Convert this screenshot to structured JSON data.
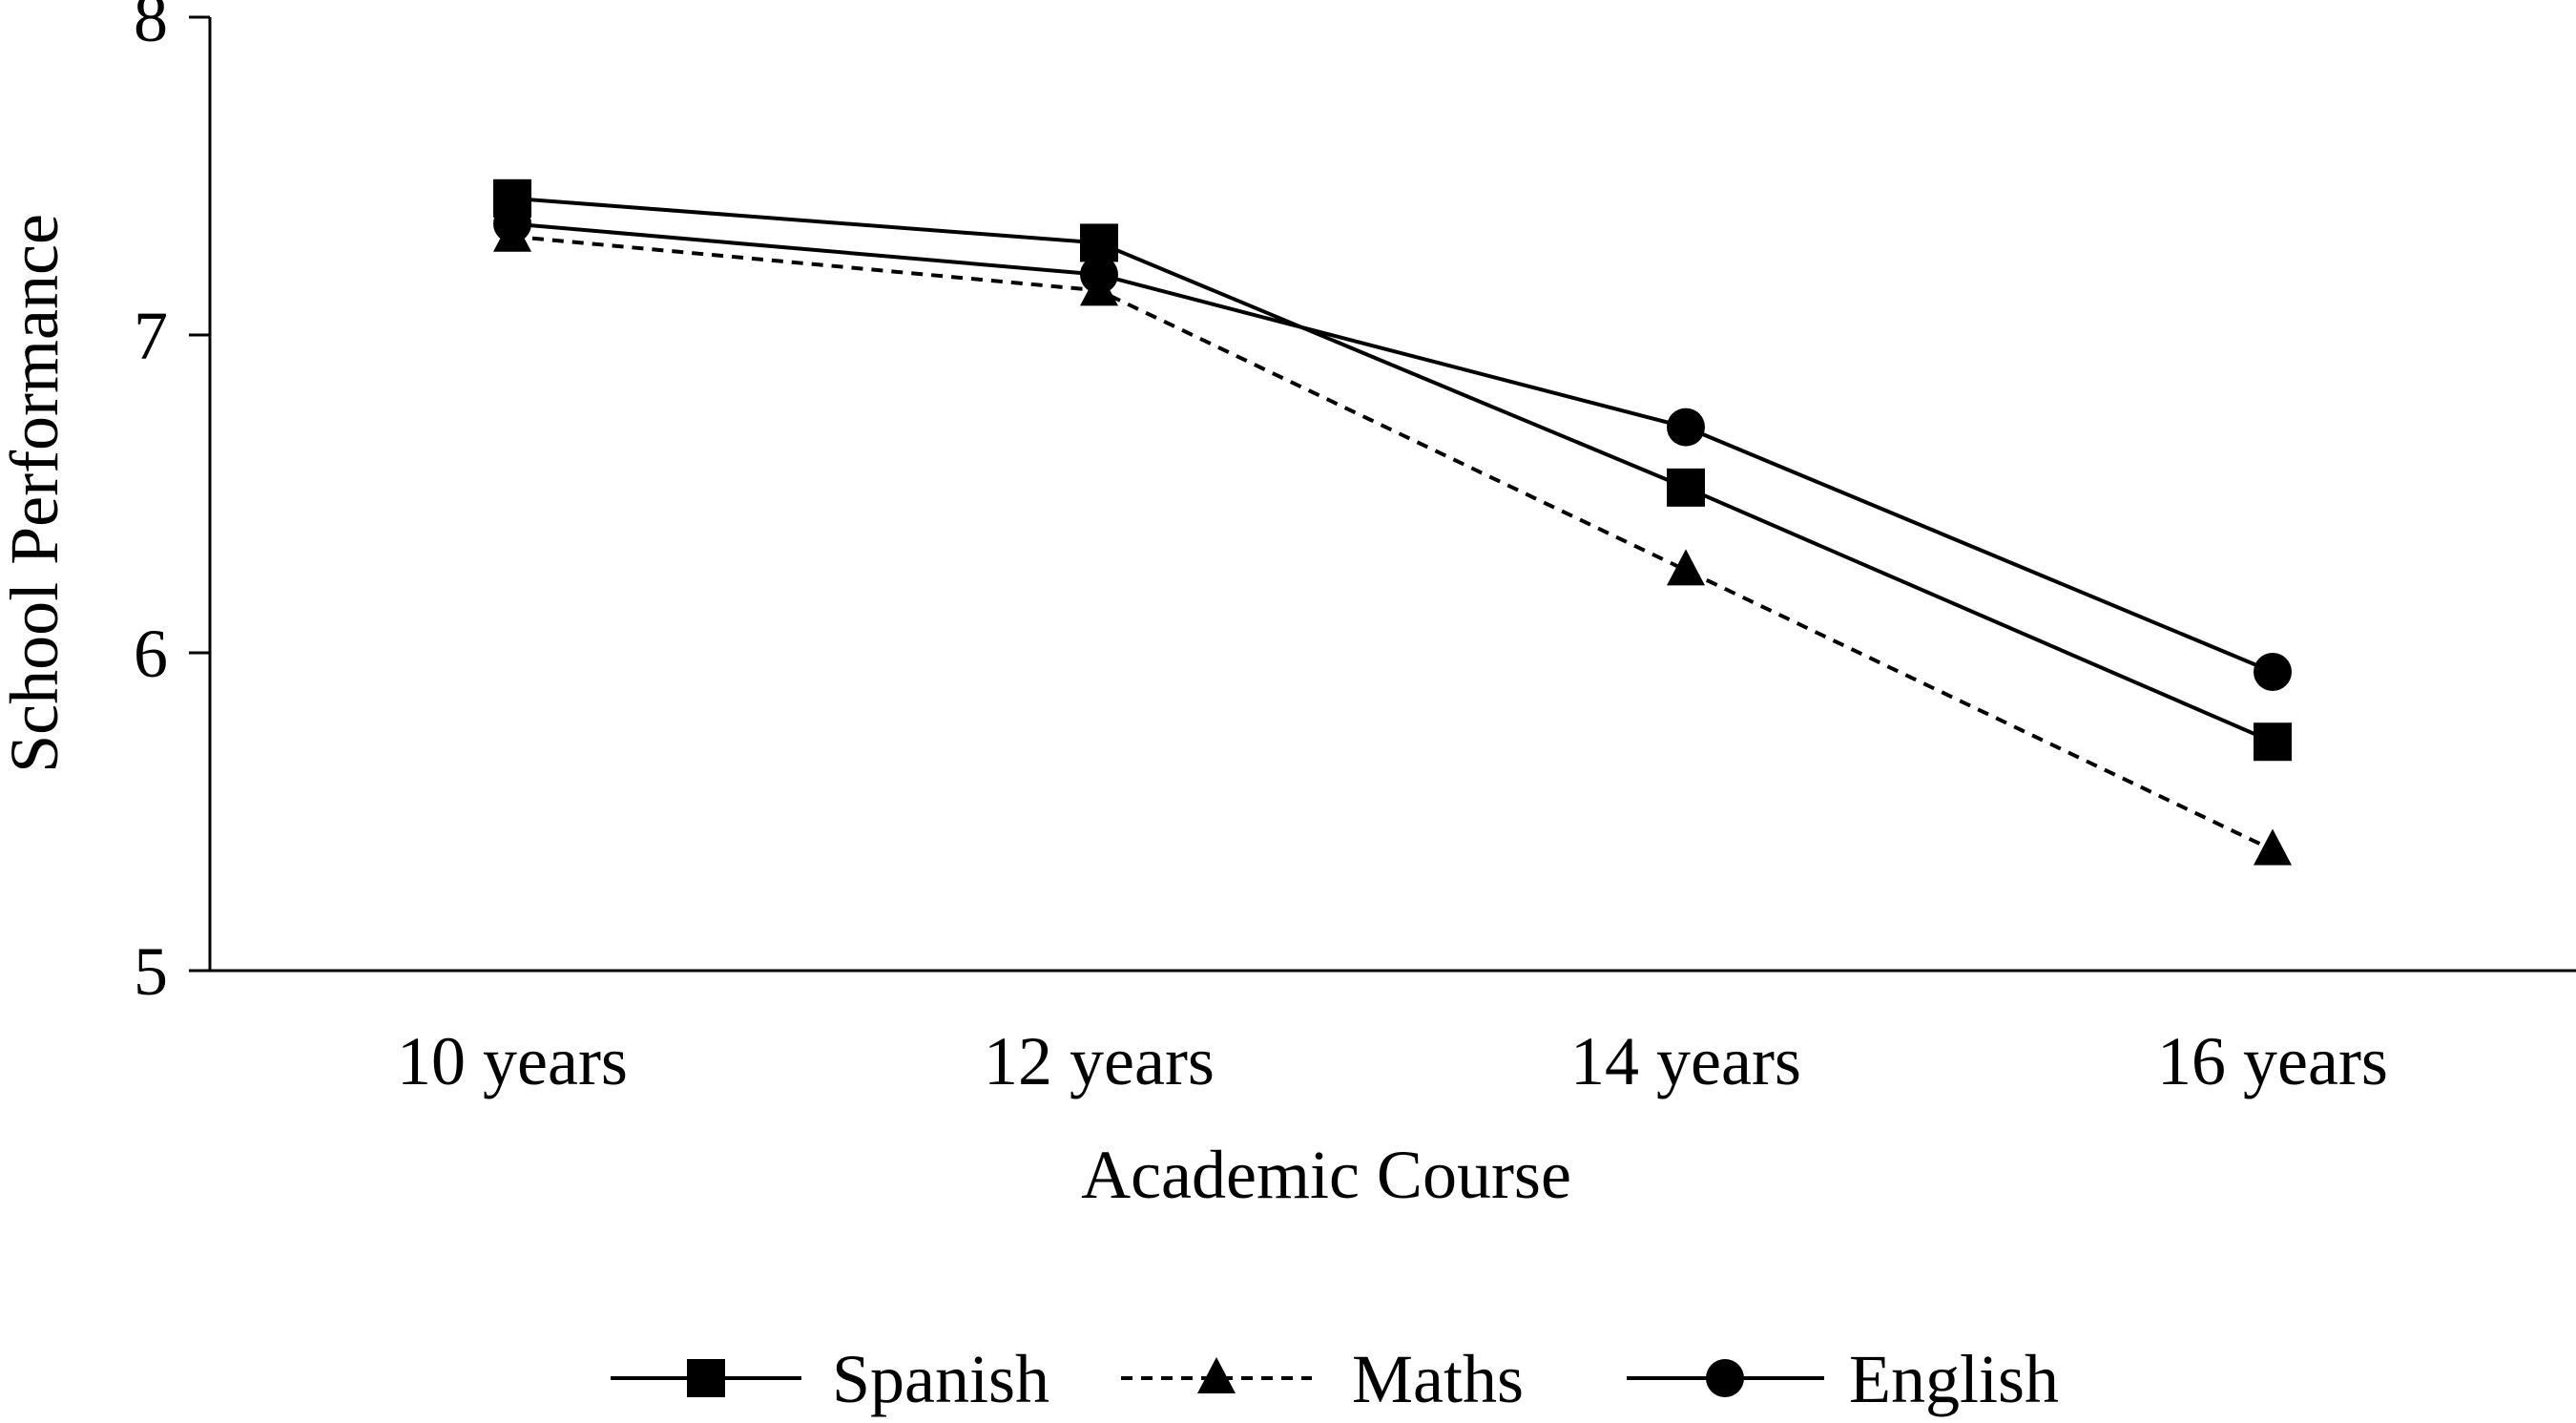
{
  "chart_data": {
    "type": "line",
    "title": "",
    "xlabel": "Academic Course",
    "ylabel": "School Performance",
    "categories": [
      "10 years",
      "12 years",
      "14 years",
      "16 years"
    ],
    "ylim": [
      5,
      8
    ],
    "yticks": [
      "5",
      "6",
      "7",
      "8"
    ],
    "grid": false,
    "legend_position": "bottom",
    "series": [
      {
        "name": "Spanish",
        "values": [
          7.43,
          7.29,
          6.52,
          5.72
        ],
        "marker": "square",
        "line_style": "solid",
        "color": "#000000"
      },
      {
        "name": "Maths",
        "values": [
          7.31,
          7.14,
          6.26,
          5.38
        ],
        "marker": "triangle",
        "line_style": "dashed",
        "color": "#000000"
      },
      {
        "name": "English",
        "values": [
          7.35,
          7.19,
          6.71,
          5.94
        ],
        "marker": "circle",
        "line_style": "solid",
        "color": "#000000"
      }
    ]
  }
}
